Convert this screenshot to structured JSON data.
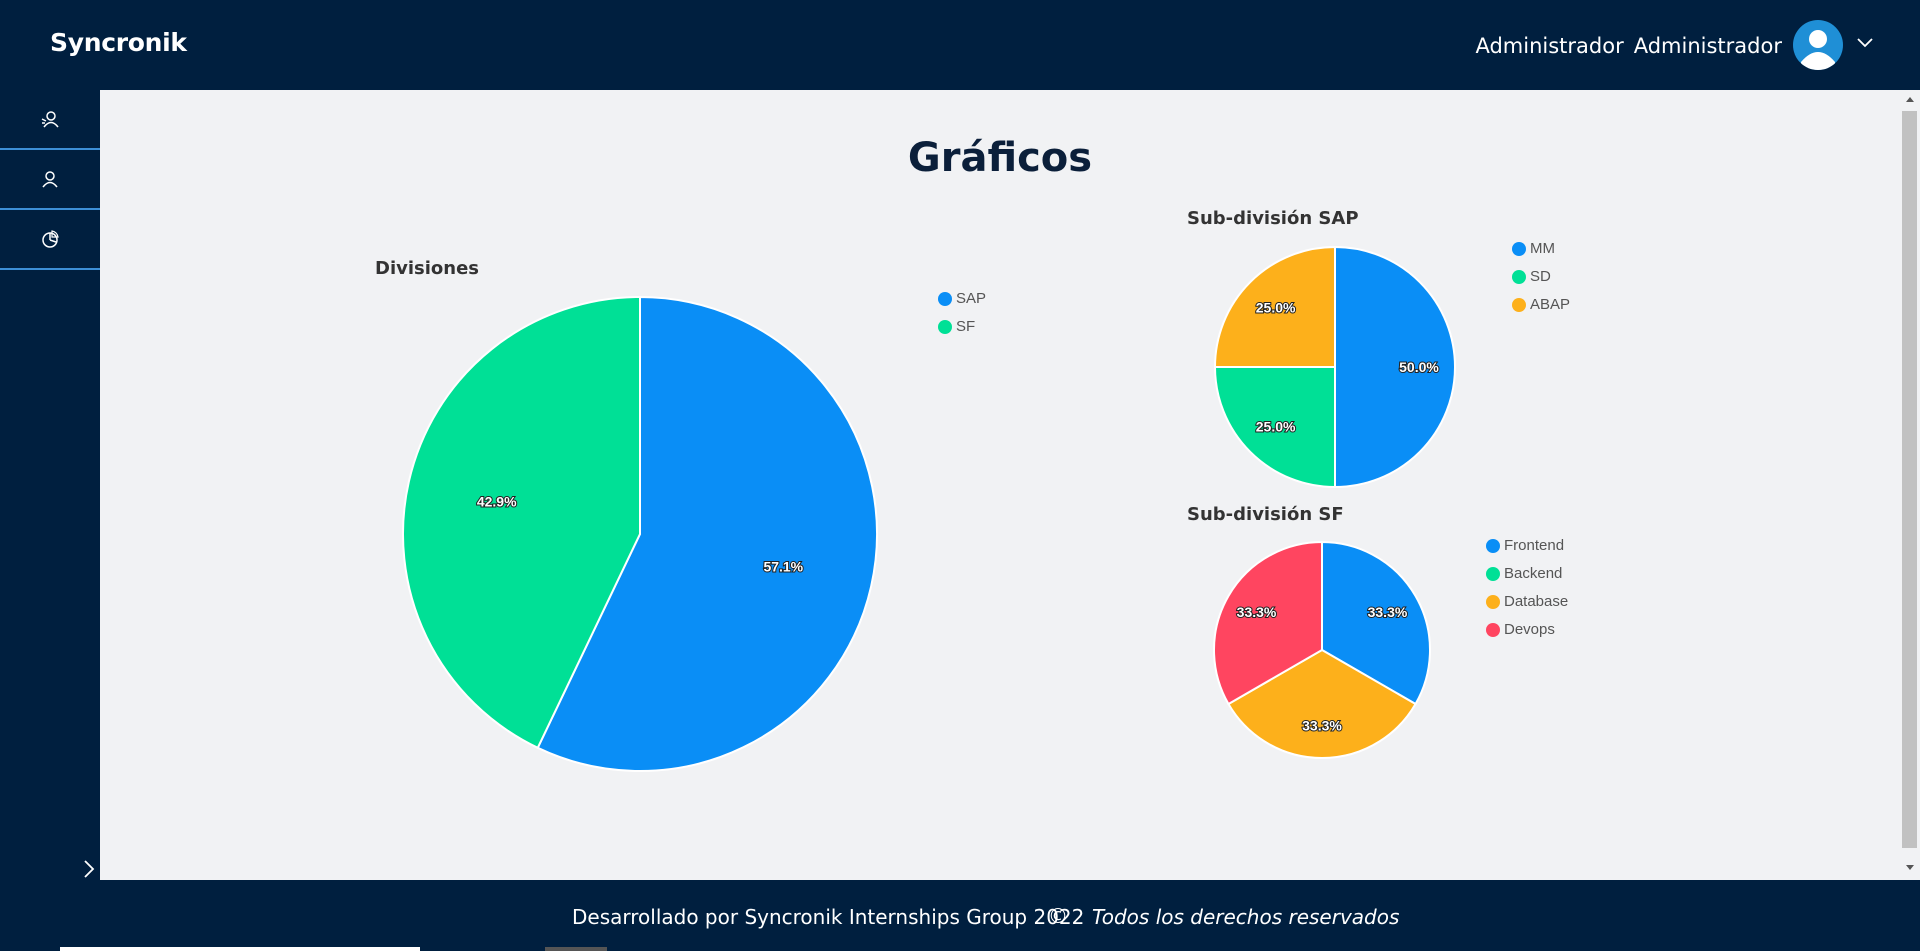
{
  "app": {
    "brand": "Syncronik"
  },
  "user": {
    "first": "Administrador",
    "last": "Administrador"
  },
  "page": {
    "title": "Gráficos"
  },
  "footer": {
    "developed": "Desarrollado por Syncronik Internships Group 2022",
    "copyright": "©",
    "rights": "Todos los derechos reservados"
  },
  "colors": {
    "blue": "#0a8ef6",
    "green": "#00e096",
    "orange": "#fdb01b",
    "red": "#ff4560",
    "nav_bg": "#001f3f"
  },
  "chart_data": [
    {
      "type": "pie",
      "title": "Divisiones",
      "categories": [
        "SAP",
        "SF"
      ],
      "values": [
        57.1,
        42.9
      ],
      "labels": [
        "57.1%",
        "42.9%"
      ],
      "colors": [
        "#0a8ef6",
        "#00e096"
      ],
      "legend": "right"
    },
    {
      "type": "pie",
      "title": "Sub-división SAP",
      "categories": [
        "MM",
        "SD",
        "ABAP"
      ],
      "values": [
        50.0,
        25.0,
        25.0
      ],
      "labels": [
        "50.0%",
        "25.0%",
        "25.0%"
      ],
      "colors": [
        "#0a8ef6",
        "#00e096",
        "#fdb01b"
      ],
      "legend": "right"
    },
    {
      "type": "pie",
      "title": "Sub-división SF",
      "categories": [
        "Frontend",
        "Backend",
        "Database",
        "Devops"
      ],
      "values": [
        33.3,
        0,
        33.3,
        33.3
      ],
      "labels": [
        "33.3%",
        "",
        "33.3%",
        "33.3%"
      ],
      "colors": [
        "#0a8ef6",
        "#00e096",
        "#fdb01b",
        "#ff4560"
      ],
      "legend": "right"
    }
  ]
}
